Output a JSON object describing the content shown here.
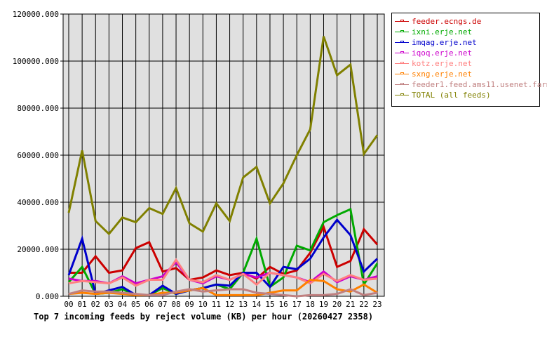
{
  "chart_data": {
    "type": "line",
    "title": "Top 7 incoming feeds by reject volume (KB) per hour (20260427 2358)",
    "x": [
      "00",
      "01",
      "02",
      "03",
      "04",
      "05",
      "06",
      "07",
      "08",
      "09",
      "10",
      "11",
      "12",
      "13",
      "14",
      "15",
      "16",
      "17",
      "18",
      "19",
      "20",
      "21",
      "22",
      "23"
    ],
    "ylim": [
      0,
      120000
    ],
    "yticks": [
      "0.000",
      "20000.000",
      "40000.000",
      "60000.000",
      "80000.000",
      "100000.000",
      "120000.000"
    ],
    "grid": true,
    "legend": "right",
    "series": [
      {
        "name": "feeder.ecngs.de",
        "color": "#cc0000",
        "values": [
          10000,
          10000,
          17000,
          10000,
          11000,
          20500,
          23000,
          10500,
          12000,
          7000,
          8000,
          11000,
          9000,
          10000,
          7500,
          12500,
          9500,
          11000,
          18500,
          29500,
          12500,
          15000,
          28500,
          22000
        ]
      },
      {
        "name": "ixni.erje.net",
        "color": "#00aa00",
        "values": [
          6000,
          12500,
          1000,
          1500,
          3000,
          500,
          500,
          3500,
          1000,
          2500,
          3500,
          5000,
          3000,
          10000,
          24500,
          4000,
          8000,
          21500,
          19500,
          31500,
          34500,
          37000,
          5000,
          14000
        ]
      },
      {
        "name": "imqag.erje.net",
        "color": "#0000cc",
        "values": [
          9000,
          24500,
          1000,
          2500,
          4000,
          500,
          500,
          4500,
          1000,
          2500,
          3500,
          5000,
          4500,
          10000,
          10000,
          4000,
          12500,
          11500,
          16000,
          25000,
          32500,
          26000,
          10500,
          16000
        ]
      },
      {
        "name": "iqoq.erje.net",
        "color": "#cc00cc",
        "values": [
          7500,
          6500,
          6500,
          5500,
          8500,
          5500,
          7000,
          8500,
          14500,
          7000,
          5500,
          8500,
          7000,
          9500,
          8000,
          10000,
          9000,
          8000,
          6000,
          10500,
          6000,
          8500,
          7000,
          8500
        ]
      },
      {
        "name": "kotz.erje.net",
        "color": "#ff8080",
        "values": [
          5500,
          6500,
          6000,
          5500,
          8000,
          4500,
          7000,
          7000,
          15500,
          7000,
          6000,
          9000,
          7000,
          9500,
          5000,
          10000,
          9000,
          8000,
          5500,
          9500,
          6500,
          9000,
          7000,
          7500
        ]
      },
      {
        "name": "sxng.erje.net",
        "color": "#ff8000",
        "values": [
          1000,
          1500,
          1000,
          1500,
          1000,
          500,
          500,
          1500,
          1500,
          2500,
          3500,
          500,
          500,
          500,
          500,
          1500,
          2500,
          2500,
          7000,
          6500,
          3000,
          2000,
          5000,
          1500
        ]
      },
      {
        "name": "feeder1.feed.ams11.usenet.farm",
        "color": "#c08080",
        "values": [
          1000,
          2500,
          2000,
          2000,
          1500,
          1000,
          500,
          500,
          2000,
          3000,
          2000,
          2500,
          3000,
          3000,
          1500,
          1000,
          500,
          0,
          500,
          500,
          1000,
          3000,
          500,
          1500
        ]
      },
      {
        "name": "TOTAL (all feeds)",
        "color": "#808000",
        "values": [
          35500,
          62000,
          32000,
          26500,
          33500,
          31500,
          37500,
          35000,
          46000,
          31000,
          27500,
          39500,
          32000,
          50500,
          55000,
          39500,
          48000,
          60000,
          71000,
          110500,
          94000,
          98500,
          60500,
          68500
        ]
      }
    ]
  }
}
